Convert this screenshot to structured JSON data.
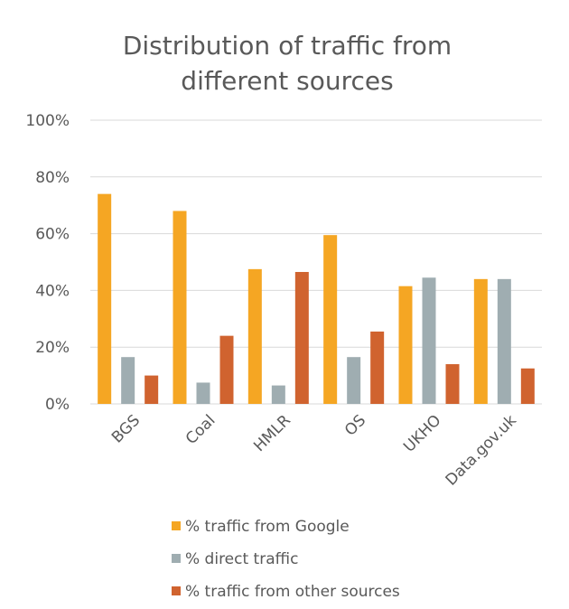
{
  "chart_data": {
    "type": "bar",
    "title_lines": [
      "Distribution of traffic from",
      "different sources"
    ],
    "categories": [
      "BGS",
      "Coal",
      "HMLR",
      "OS",
      "UKHO",
      "Data.gov.uk"
    ],
    "y_tick_labels": [
      "0%",
      "20%",
      "40%",
      "60%",
      "80%",
      "100%"
    ],
    "ylim": [
      0,
      100
    ],
    "grid": true,
    "legend_position": "bottom",
    "series": [
      {
        "name": "% traffic from Google",
        "color": "#f5a623",
        "values": [
          74,
          68,
          47.5,
          59.5,
          41.5,
          44
        ]
      },
      {
        "name": "% direct traffic",
        "color": "#9fadb1",
        "values": [
          16.5,
          7.5,
          6.5,
          16.5,
          44.5,
          44
        ]
      },
      {
        "name": "% traffic from other sources",
        "color": "#d0632f",
        "values": [
          10,
          24,
          46.5,
          25.5,
          14,
          12.5
        ]
      }
    ]
  }
}
